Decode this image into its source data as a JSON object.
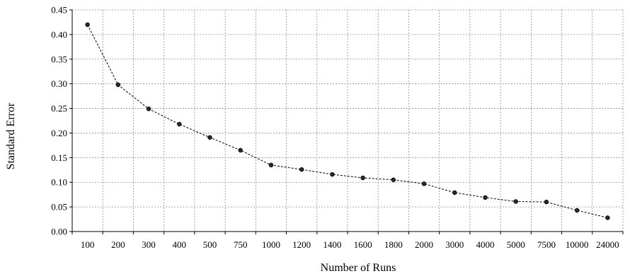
{
  "chart_data": {
    "type": "line",
    "title": "",
    "xlabel": "Number of Runs",
    "ylabel": "Standard Error",
    "categories": [
      "100",
      "200",
      "300",
      "400",
      "500",
      "750",
      "1000",
      "1200",
      "1400",
      "1600",
      "1800",
      "2000",
      "3000",
      "4000",
      "5000",
      "7500",
      "10000",
      "24000"
    ],
    "series": [
      {
        "values": [
          0.42,
          0.298,
          0.249,
          0.218,
          0.191,
          0.165,
          0.135,
          0.126,
          0.116,
          0.109,
          0.105,
          0.097,
          0.079,
          0.069,
          0.061,
          0.06,
          0.043,
          0.028
        ],
        "line_style": "dashed",
        "marker": "circle",
        "color": "#000000",
        "marker_fill": "#1f2a44"
      }
    ],
    "ylim": [
      0,
      0.45
    ],
    "yticks": [
      "0.00",
      "0.05",
      "0.10",
      "0.15",
      "0.20",
      "0.25",
      "0.30",
      "0.35",
      "0.40",
      "0.45"
    ],
    "grid": true,
    "grid_style": "dotted",
    "legend": "none"
  }
}
